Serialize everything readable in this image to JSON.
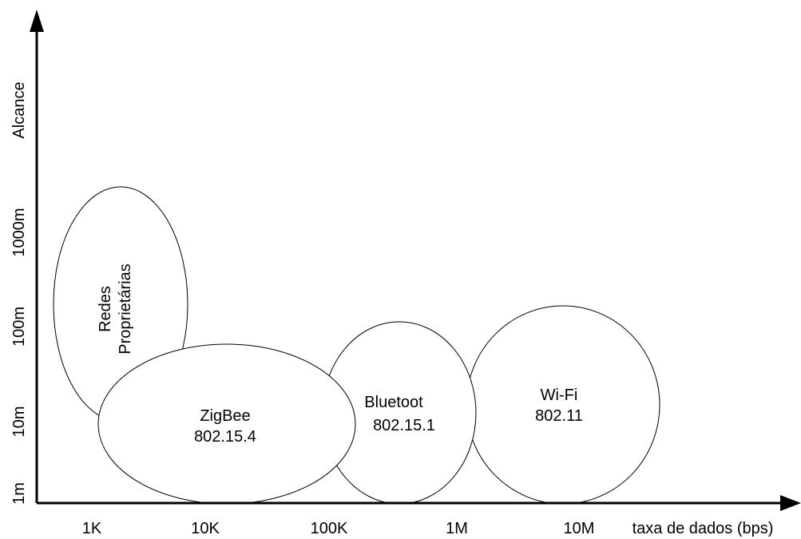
{
  "axes": {
    "x_label": "taxa de dados (bps)",
    "y_label": "Alcance",
    "x_ticks": [
      "1K",
      "10K",
      "100K",
      "1M",
      "10M"
    ],
    "y_ticks": [
      "1m",
      "10m",
      "100m",
      "1000m"
    ]
  },
  "networks": [
    {
      "id": "proprietary",
      "lines": [
        "Redes",
        "Proprietárias"
      ]
    },
    {
      "id": "zigbee",
      "lines": [
        "ZigBee",
        "802.15.4"
      ]
    },
    {
      "id": "bluetooth",
      "lines": [
        "Bluetoot",
        "802.15.1"
      ]
    },
    {
      "id": "wifi",
      "lines": [
        "Wi-Fi",
        "802.11"
      ]
    }
  ]
}
